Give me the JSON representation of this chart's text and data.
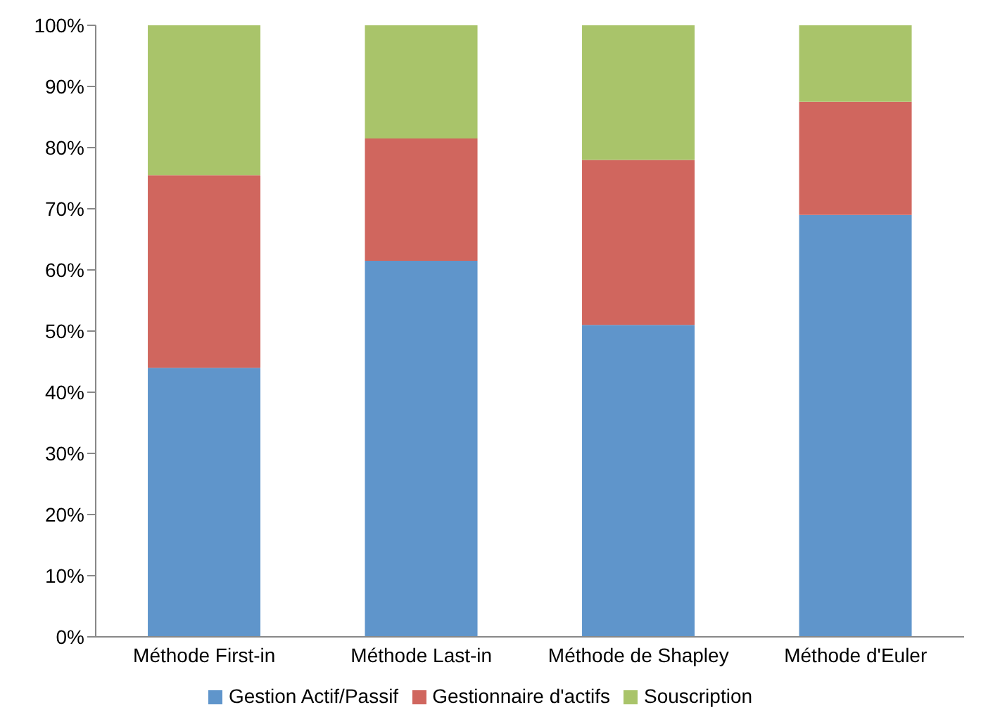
{
  "chart_data": {
    "type": "bar",
    "stacked": true,
    "categories": [
      "Méthode First-in",
      "Méthode Last-in",
      "Méthode de Shapley",
      "Méthode d'Euler"
    ],
    "series": [
      {
        "name": "Gestion Actif/Passif",
        "color": "#5f95cb",
        "values": [
          44,
          61.5,
          51,
          69
        ]
      },
      {
        "name": "Gestionnaire d'actifs",
        "color": "#d0665e",
        "values": [
          31.5,
          20,
          27,
          18.5
        ]
      },
      {
        "name": "Souscription",
        "color": "#a9c46a",
        "values": [
          24.5,
          18.5,
          22,
          12.5
        ]
      }
    ],
    "ylim": [
      0,
      100
    ],
    "yticks": [
      {
        "value": 0,
        "label": "0%"
      },
      {
        "value": 10,
        "label": "10%"
      },
      {
        "value": 20,
        "label": "20%"
      },
      {
        "value": 30,
        "label": "30%"
      },
      {
        "value": 40,
        "label": "40%"
      },
      {
        "value": 50,
        "label": "50%"
      },
      {
        "value": 60,
        "label": "60%"
      },
      {
        "value": 70,
        "label": "70%"
      },
      {
        "value": 80,
        "label": "80%"
      },
      {
        "value": 90,
        "label": "90%"
      },
      {
        "value": 100,
        "label": "100%"
      }
    ],
    "grid": false,
    "legend": "bottom"
  }
}
